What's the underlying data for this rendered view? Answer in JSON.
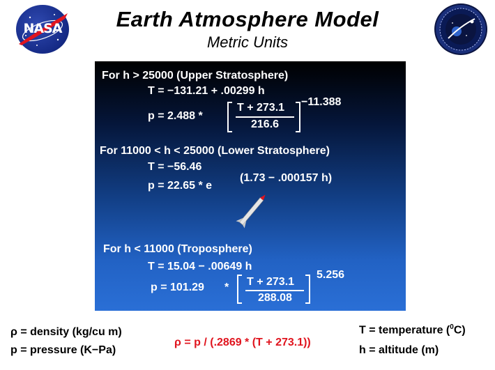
{
  "header": {
    "title": "Earth  Atmosphere  Model",
    "subtitle": "Metric  Units",
    "nasa_logo_text": "NASA"
  },
  "upper_stratosphere": {
    "condition": "For  h  >  25000  (Upper Stratosphere)",
    "temperature_eq": "T  =  −131.21 + .00299 h",
    "pressure_lhs": "p  =  2.488  *",
    "numerator": "T +  273.1",
    "denominator": "216.6",
    "exponent": "−11.388"
  },
  "lower_stratosphere": {
    "condition": "For  11000  < h  <  25000  (Lower Stratosphere)",
    "temperature_eq": "T  =  −56.46",
    "pressure_lhs": "p  =  22.65  *  e",
    "exponent": "(1.73 − .000157 h)"
  },
  "troposphere": {
    "condition": "For   h   <  11000  (Troposphere)",
    "temperature_eq": "T  =  15.04  − .00649 h",
    "pressure_lhs": "p  =  101.29",
    "multiply": "*",
    "numerator": "T +  273.1",
    "denominator": "288.08",
    "exponent": "5.256"
  },
  "legend": {
    "density": "ρ  =  density  (kg/cu m)",
    "pressure": "p  =  pressure  (K−Pa)",
    "density_formula": "ρ  =  p /  (.2869 * (T + 273.1))",
    "temperature_prefix": "T  =  temperature  (",
    "temperature_degree": "0",
    "temperature_suffix": "C)",
    "altitude": "h = altitude (m)"
  },
  "colors": {
    "accent_red": "#e0141e",
    "panel_top": "#000000",
    "panel_bottom": "#2a6fd6",
    "nasa_blue": "#152a86"
  },
  "icons": {
    "nasa_logo": "nasa-meatball-icon",
    "seal_logo": "nasa-seal-icon",
    "rocket": "rocket-icon"
  }
}
